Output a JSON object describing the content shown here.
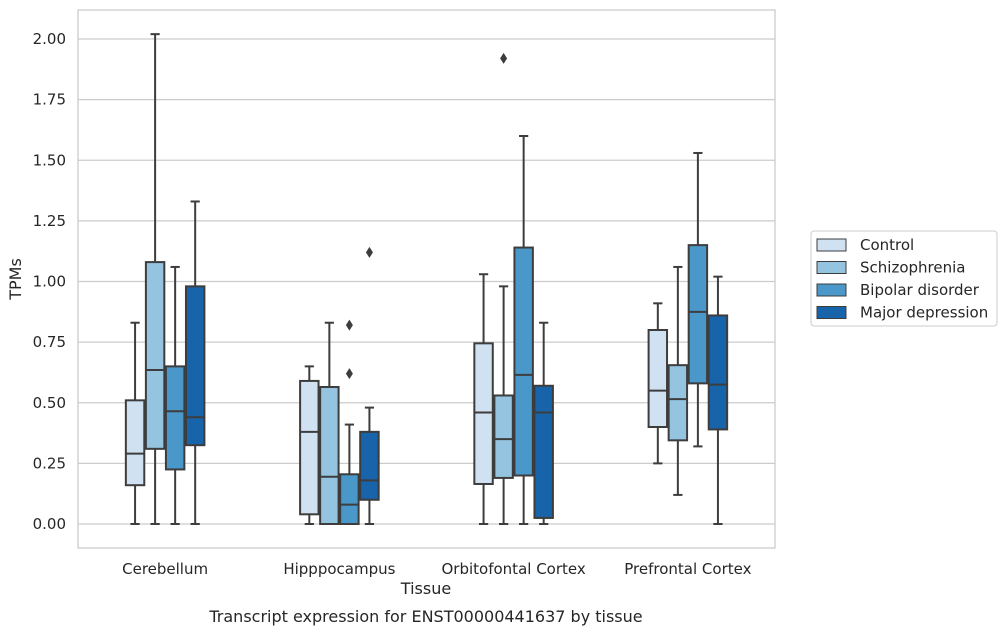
{
  "chart_data": {
    "type": "boxplot",
    "caption": "Transcript expression for ENST00000441637 by tissue",
    "xlabel": "Tissue",
    "ylabel": "TPMs",
    "ylim": [
      -0.1,
      2.12
    ],
    "yticks": [
      "0.00",
      "0.25",
      "0.50",
      "0.75",
      "1.00",
      "1.25",
      "1.50",
      "1.75",
      "2.00"
    ],
    "grid": "horizontal",
    "legend_placement": "right",
    "categories": [
      "Cerebellum",
      "Hipppocampus",
      "Orbitofontal Cortex",
      "Prefrontal Cortex"
    ],
    "series": [
      {
        "name": "Control",
        "color": "#d0e1f2",
        "boxes": [
          {
            "whisker_low": 0.0,
            "q1": 0.16,
            "median": 0.29,
            "q3": 0.51,
            "whisker_high": 0.83,
            "outliers": []
          },
          {
            "whisker_low": 0.0,
            "q1": 0.04,
            "median": 0.38,
            "q3": 0.59,
            "whisker_high": 0.65,
            "outliers": []
          },
          {
            "whisker_low": 0.0,
            "q1": 0.165,
            "median": 0.46,
            "q3": 0.745,
            "whisker_high": 1.03,
            "outliers": []
          },
          {
            "whisker_low": 0.25,
            "q1": 0.4,
            "median": 0.55,
            "q3": 0.8,
            "whisker_high": 0.91,
            "outliers": []
          }
        ]
      },
      {
        "name": "Schizophrenia",
        "color": "#94c4df",
        "boxes": [
          {
            "whisker_low": 0.0,
            "q1": 0.31,
            "median": 0.635,
            "q3": 1.08,
            "whisker_high": 2.02,
            "outliers": []
          },
          {
            "whisker_low": 0.0,
            "q1": 0.0,
            "median": 0.195,
            "q3": 0.565,
            "whisker_high": 0.83,
            "outliers": []
          },
          {
            "whisker_low": 0.0,
            "q1": 0.19,
            "median": 0.35,
            "q3": 0.53,
            "whisker_high": 0.98,
            "outliers": [
              1.92
            ]
          },
          {
            "whisker_low": 0.12,
            "q1": 0.345,
            "median": 0.515,
            "q3": 0.655,
            "whisker_high": 1.06,
            "outliers": []
          }
        ]
      },
      {
        "name": "Bipolar disorder",
        "color": "#4a98c9",
        "boxes": [
          {
            "whisker_low": 0.0,
            "q1": 0.225,
            "median": 0.465,
            "q3": 0.65,
            "whisker_high": 1.06,
            "outliers": []
          },
          {
            "whisker_low": 0.0,
            "q1": 0.0,
            "median": 0.08,
            "q3": 0.205,
            "whisker_high": 0.41,
            "outliers": [
              0.62,
              0.82
            ]
          },
          {
            "whisker_low": 0.0,
            "q1": 0.2,
            "median": 0.615,
            "q3": 1.14,
            "whisker_high": 1.6,
            "outliers": []
          },
          {
            "whisker_low": 0.32,
            "q1": 0.58,
            "median": 0.875,
            "q3": 1.15,
            "whisker_high": 1.53,
            "outliers": []
          }
        ]
      },
      {
        "name": "Major depression",
        "color": "#1764ab",
        "boxes": [
          {
            "whisker_low": 0.0,
            "q1": 0.325,
            "median": 0.44,
            "q3": 0.98,
            "whisker_high": 1.33,
            "outliers": []
          },
          {
            "whisker_low": 0.0,
            "q1": 0.1,
            "median": 0.18,
            "q3": 0.38,
            "whisker_high": 0.48,
            "outliers": [
              1.12
            ]
          },
          {
            "whisker_low": 0.0,
            "q1": 0.025,
            "median": 0.46,
            "q3": 0.57,
            "whisker_high": 0.83,
            "outliers": []
          },
          {
            "whisker_low": 0.0,
            "q1": 0.39,
            "median": 0.575,
            "q3": 0.86,
            "whisker_high": 1.02,
            "outliers": []
          }
        ]
      }
    ]
  }
}
